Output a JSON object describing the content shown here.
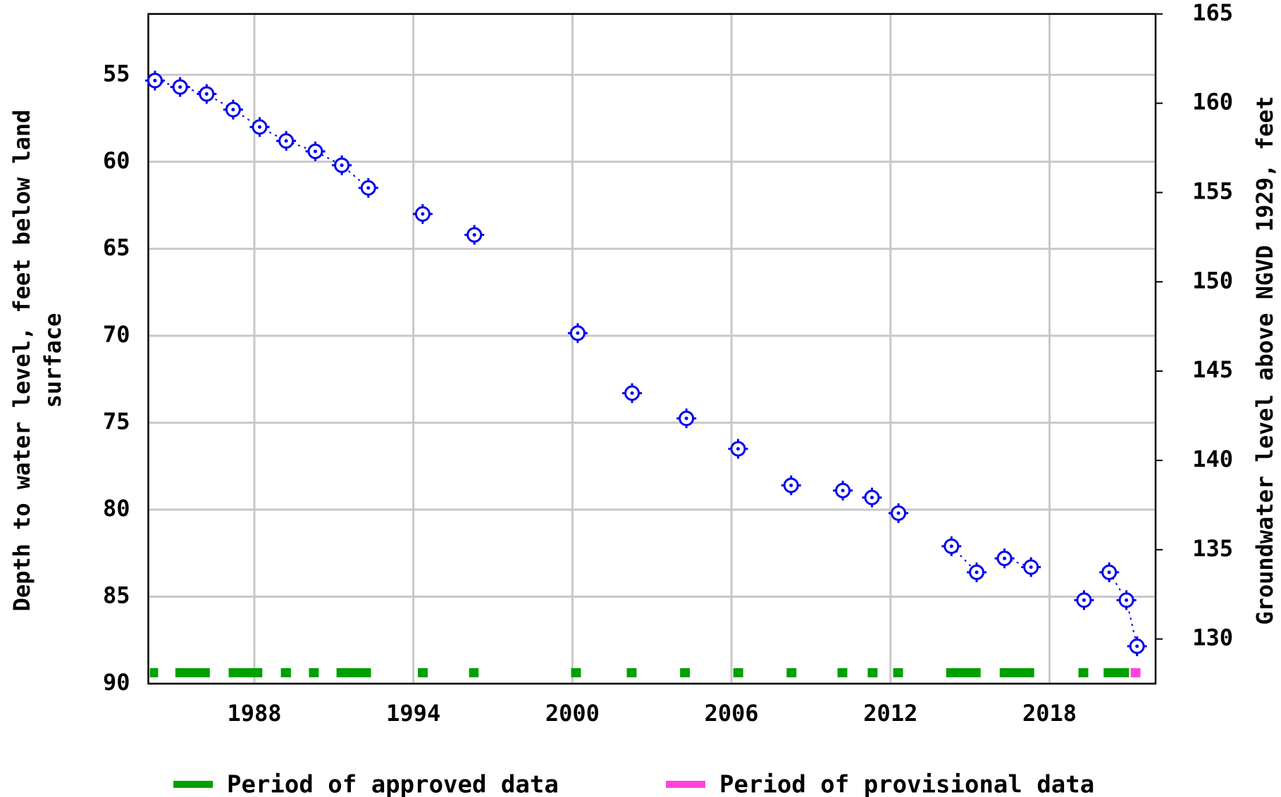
{
  "chart_data": {
    "type": "scatter",
    "ylabel_left": [
      "Depth to water level, feet below land",
      "surface"
    ],
    "ylabel_right": "Groundwater level above NGVD 1929, feet",
    "xlim": [
      1984,
      2022
    ],
    "xticks": [
      1988,
      1994,
      2000,
      2006,
      2012,
      2018
    ],
    "ylim": [
      51.5,
      90
    ],
    "yticks": [
      55,
      60,
      65,
      70,
      75,
      80,
      85,
      90
    ],
    "y2lim": [
      127.5,
      165
    ],
    "y2ticks": [
      130,
      135,
      140,
      145,
      150,
      155,
      160,
      165
    ],
    "grid": true,
    "series": [
      {
        "name": "Depth to water level",
        "color": "#0000ee",
        "x": [
          1984.25,
          1985.2,
          1986.2,
          1987.2,
          1988.2,
          1989.2,
          1990.3,
          1991.3,
          1992.3,
          1993.3,
          1994.35,
          1995.3,
          1996.3,
          1998.2,
          2000.2,
          2001.2,
          2002.25,
          2003.3,
          2004.3,
          2005.3,
          2006.25,
          2007.3,
          2008.25,
          2009.2,
          2010.2,
          2010.7,
          2011.3,
          2011.8,
          2012.3,
          2013.3,
          2014.3,
          2015.25,
          2015.8,
          2016.3,
          2017.3,
          2018.3,
          2019.3,
          2019.8,
          2020.25,
          2020.9,
          2021.3
        ],
        "values": [
          55.33,
          55.7,
          56.1,
          57.0,
          58.0,
          58.8,
          59.4,
          60.2,
          61.5,
          null,
          63.0,
          null,
          64.2,
          null,
          69.85,
          null,
          73.3,
          null,
          74.75,
          null,
          76.5,
          null,
          78.6,
          null,
          78.9,
          null,
          79.3,
          null,
          80.2,
          null,
          82.1,
          83.6,
          null,
          82.8,
          83.3,
          null,
          85.2,
          null,
          83.6,
          85.2,
          87.85
        ]
      }
    ],
    "periods": [
      {
        "name": "Period of approved data",
        "color": "#00a000",
        "ranges": [
          [
            1984.06,
            1984.37
          ],
          [
            1985.02,
            1986.32
          ],
          [
            1987.03,
            1988.3
          ],
          [
            1989.0,
            1989.38
          ],
          [
            1990.06,
            1990.43
          ],
          [
            1991.1,
            1992.4
          ],
          [
            1994.17,
            1994.54
          ],
          [
            1996.1,
            1996.46
          ],
          [
            1999.95,
            2000.32
          ],
          [
            2002.05,
            2002.42
          ],
          [
            2004.06,
            2004.43
          ],
          [
            2006.07,
            2006.44
          ],
          [
            2008.08,
            2008.45
          ],
          [
            2010.0,
            2010.37
          ],
          [
            2011.14,
            2011.51
          ],
          [
            2012.1,
            2012.47
          ],
          [
            2014.1,
            2015.4
          ],
          [
            2016.12,
            2017.42
          ],
          [
            2019.09,
            2019.46
          ],
          [
            2020.04,
            2021.0
          ]
        ]
      },
      {
        "name": "Period of provisional data",
        "color": "#ff44dd",
        "ranges": [
          [
            2021.06,
            2021.43
          ]
        ]
      }
    ]
  }
}
